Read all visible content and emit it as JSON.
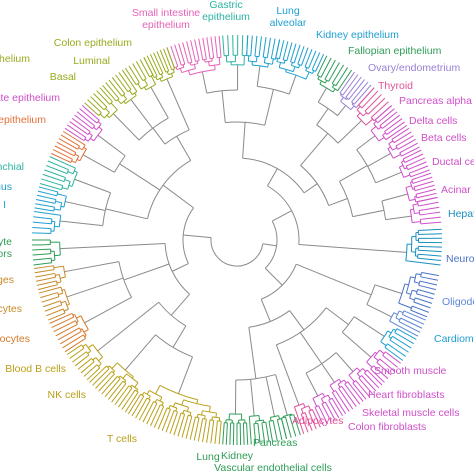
{
  "dendrogram": {
    "branch_color": "#8a8a8a",
    "cell_types": [
      {
        "id": "small-intestine-epithelium",
        "lines": [
          "Small intestine",
          "epithelium"
        ],
        "color": "#e463b7"
      },
      {
        "id": "gastric-epithelium",
        "lines": [
          "Gastric",
          "epithelium"
        ],
        "color": "#2bb3a1"
      },
      {
        "id": "lung-alveolar",
        "lines": [
          "Lung",
          "alveolar"
        ],
        "color": "#1e9fd0"
      },
      {
        "id": "kidney-epithelium",
        "lines": [
          "Kidney epithelium"
        ],
        "color": "#1e9fd0"
      },
      {
        "id": "fallopian-epithelium",
        "lines": [
          "Fallopian epithelium"
        ],
        "color": "#2e9d57"
      },
      {
        "id": "ovary-endometrium",
        "lines": [
          "Ovary/endometrium"
        ],
        "color": "#9a7fd6"
      },
      {
        "id": "thyroid",
        "lines": [
          "Thyroid"
        ],
        "color": "#e0519a"
      },
      {
        "id": "pancreas-alpha-cells",
        "lines": [
          "Pancreas alpha ce"
        ],
        "color": "#cf4fc9"
      },
      {
        "id": "delta-cells",
        "lines": [
          "Delta cells"
        ],
        "color": "#cf4fc9"
      },
      {
        "id": "beta-cells",
        "lines": [
          "Beta cells"
        ],
        "color": "#cf4fc9"
      },
      {
        "id": "ductal-cells",
        "lines": [
          "Ductal ce"
        ],
        "color": "#cf4fc9"
      },
      {
        "id": "acinar-cells",
        "lines": [
          "Acinar c"
        ],
        "color": "#cf4fc9"
      },
      {
        "id": "hepatocytes",
        "lines": [
          "Hepat"
        ],
        "color": "#1a8fbf"
      },
      {
        "id": "neurons",
        "lines": [
          "Neuro"
        ],
        "color": "#4a72c6"
      },
      {
        "id": "oligodendrocytes",
        "lines": [
          "Oligode"
        ],
        "color": "#5b86d8"
      },
      {
        "id": "cardiomyocytes",
        "lines": [
          "Cardiomyo"
        ],
        "color": "#1e9fd0"
      },
      {
        "id": "smooth-muscle",
        "lines": [
          "Smooth muscle"
        ],
        "color": "#cf4fc9"
      },
      {
        "id": "heart-fibroblasts",
        "lines": [
          "Heart fibroblasts"
        ],
        "color": "#cf4fc9"
      },
      {
        "id": "skeletal-muscle-cells",
        "lines": [
          "Skeletal muscle cells"
        ],
        "color": "#cf4fc9"
      },
      {
        "id": "colon-fibroblasts",
        "lines": [
          "Colon fibroblasts"
        ],
        "color": "#cf4fc9"
      },
      {
        "id": "adipocytes",
        "lines": [
          "Adipocytes"
        ],
        "color": "#e0519a"
      },
      {
        "id": "pancreas",
        "lines": [
          "Pancreas"
        ],
        "color": "#2e9d57"
      },
      {
        "id": "kidney",
        "lines": [
          "Kidney"
        ],
        "color": "#2e9d57"
      },
      {
        "id": "lung",
        "lines": [
          "Lung"
        ],
        "color": "#2e9d57"
      },
      {
        "id": "vascular-endothelial-cells",
        "lines": [
          "Vascular endothelial cells"
        ],
        "color": "#2e9d57"
      },
      {
        "id": "t-cells",
        "lines": [
          "T cells"
        ],
        "color": "#b9a019"
      },
      {
        "id": "nk-cells",
        "lines": [
          "NK cells"
        ],
        "color": "#b9a019"
      },
      {
        "id": "blood-b-cells",
        "lines": [
          "Blood B cells"
        ],
        "color": "#b9a019"
      },
      {
        "id": "monocytes",
        "lines": [
          "onocytes"
        ],
        "color": "#d67a2c"
      },
      {
        "id": "granulocytes",
        "lines": [
          "ocytes"
        ],
        "color": "#c98a2b"
      },
      {
        "id": "macrophages",
        "lines": [
          "ages"
        ],
        "color": "#c98a2b"
      },
      {
        "id": "hematopoietic-progenitors",
        "lines": [
          "cyte",
          "tors"
        ],
        "color": "#2e9d57"
      },
      {
        "id": "hepatic-stellate",
        "lines": [
          "I"
        ],
        "color": "#1e9fd0"
      },
      {
        "id": "esophagus",
        "lines": [
          "agus"
        ],
        "color": "#1e9fd0"
      },
      {
        "id": "bronchial-epithelium",
        "lines": [
          "onchial"
        ],
        "color": "#2bb3a1"
      },
      {
        "id": "lung-epithelium",
        "lines": [
          "epithelium"
        ],
        "color": "#e2703a"
      },
      {
        "id": "prostate-epithelium",
        "lines": [
          "ate epithelium"
        ],
        "color": "#cf4fc9"
      },
      {
        "id": "basal",
        "lines": [
          "Basal"
        ],
        "color": "#9aaa1d"
      },
      {
        "id": "breast-epithelium",
        "lines": [
          "st epithelium"
        ],
        "color": "#9aaa1d"
      },
      {
        "id": "luminal",
        "lines": [
          "Luminal"
        ],
        "color": "#9aaa1d"
      },
      {
        "id": "colon-epithelium",
        "lines": [
          "Colon epithelium"
        ],
        "color": "#9aaa1d"
      }
    ]
  }
}
